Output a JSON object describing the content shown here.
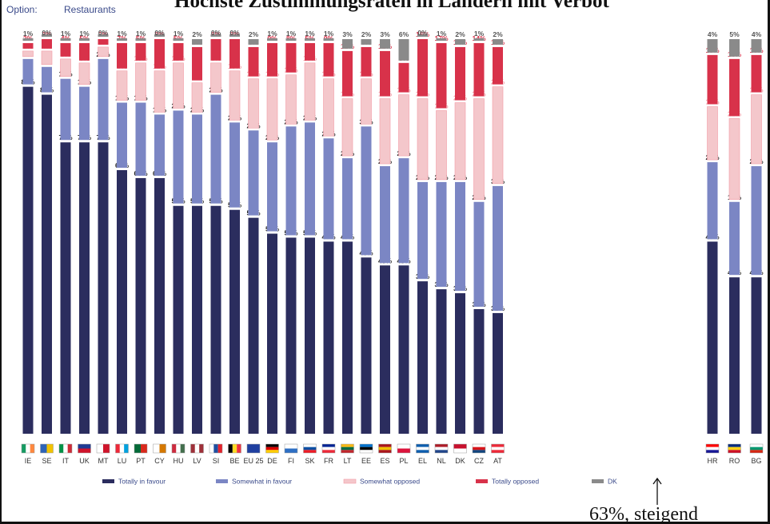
{
  "title": "Höchste Zustimmungsraten in Ländern mit Verbot",
  "option": {
    "label": "Option:",
    "value": "Restaurants"
  },
  "note": {
    "text": "63%, steigend"
  },
  "colors": {
    "totally_favour": "#2b2d5e",
    "somewhat_favour": "#7b86c4",
    "somewhat_opposed": "#f4c7cb",
    "totally_opposed": "#d8324a",
    "dk": "#8a8a8a"
  },
  "chart_data": {
    "type": "bar",
    "stacked": true,
    "categories": [
      "IE",
      "SE",
      "IT",
      "UK",
      "MT",
      "LU",
      "PT",
      "CY",
      "HU",
      "LV",
      "SI",
      "BE",
      "EU 25",
      "DE",
      "FI",
      "SK",
      "FR",
      "LT",
      "EE",
      "ES",
      "PL",
      "EL",
      "NL",
      "DK",
      "CZ",
      "AT",
      "HR",
      "RO",
      "BG"
    ],
    "series": [
      {
        "name": "Totally in favour",
        "values": [
          88,
          86,
          74,
          74,
          74,
          67,
          65,
          65,
          58,
          58,
          58,
          57,
          55,
          51,
          50,
          50,
          49,
          49,
          45,
          43,
          43,
          39,
          37,
          36,
          32,
          31,
          49,
          40,
          40
        ]
      },
      {
        "name": "Somewhat in favour",
        "values": [
          7,
          7,
          16,
          14,
          21,
          17,
          19,
          16,
          24,
          23,
          28,
          22,
          22,
          23,
          28,
          29,
          26,
          21,
          33,
          25,
          27,
          25,
          27,
          28,
          27,
          32,
          20,
          19,
          28
        ]
      },
      {
        "name": "Somewhat opposed",
        "values": [
          2,
          4,
          5,
          6,
          3,
          8,
          10,
          11,
          12,
          8,
          8,
          13,
          13,
          16,
          13,
          15,
          15,
          15,
          12,
          17,
          16,
          21,
          18,
          20,
          26,
          25,
          14,
          21,
          18
        ]
      },
      {
        "name": "Totally opposed",
        "values": [
          2,
          3,
          4,
          5,
          2,
          7,
          5,
          8,
          5,
          9,
          6,
          8,
          8,
          9,
          8,
          5,
          9,
          12,
          8,
          12,
          8,
          15,
          17,
          14,
          14,
          10,
          13,
          15,
          10
        ]
      },
      {
        "name": "DK",
        "values": [
          1,
          0,
          1,
          1,
          0,
          1,
          1,
          0,
          1,
          2,
          0,
          0,
          2,
          1,
          1,
          1,
          1,
          3,
          2,
          3,
          6,
          0,
          1,
          2,
          1,
          2,
          4,
          5,
          4
        ]
      }
    ],
    "legend_position": "bottom"
  }
}
